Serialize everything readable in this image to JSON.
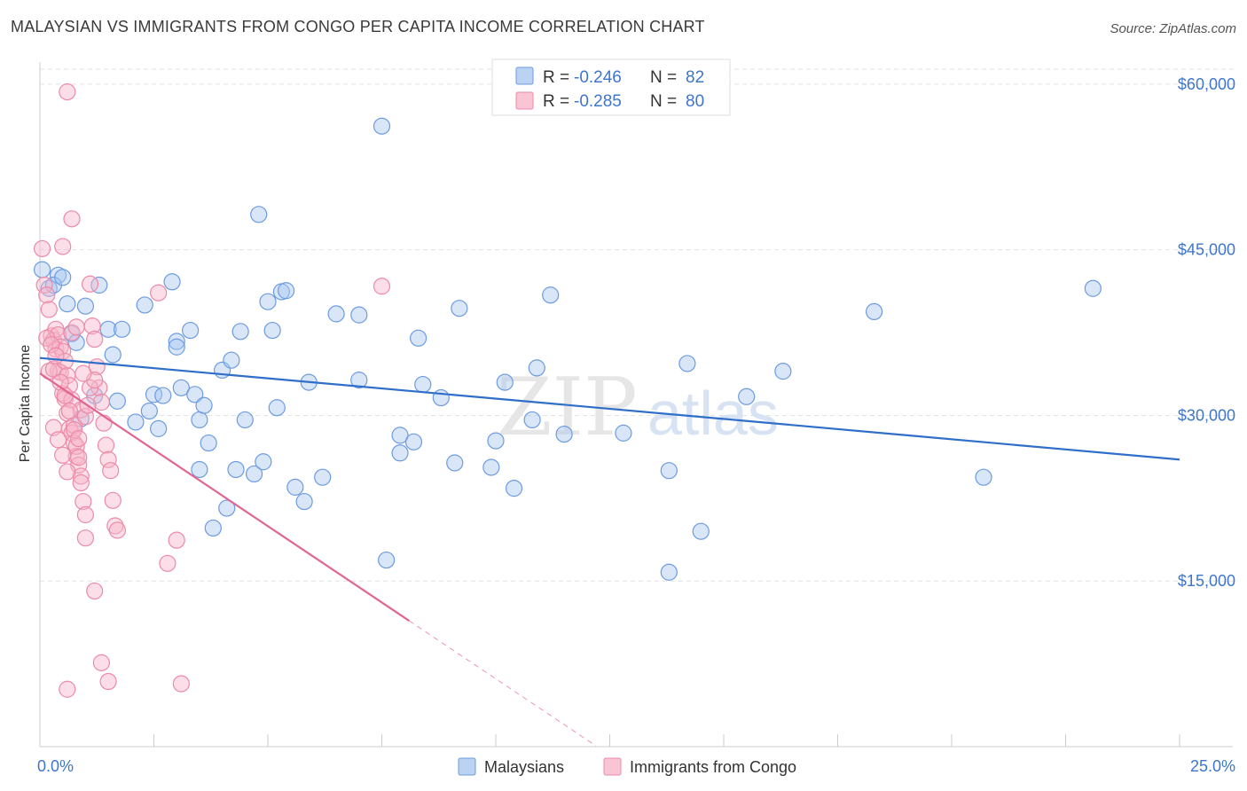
{
  "title": "MALAYSIAN VS IMMIGRANTS FROM CONGO PER CAPITA INCOME CORRELATION CHART",
  "source": "Source: ZipAtlas.com",
  "watermark": {
    "a": "ZIP",
    "b": "atlas"
  },
  "legend": {
    "r_label": "R =",
    "n_label": "N =",
    "rows": [
      {
        "r": "-0.246",
        "n": "82"
      },
      {
        "r": "-0.285",
        "n": "80"
      }
    ]
  },
  "colors": {
    "blue_fill": "#a9c8ef",
    "blue_stroke": "#6d9be0",
    "blue_line": "#2f6fc9",
    "pink_fill": "#f7b6ca",
    "pink_stroke": "#ec8aa8",
    "pink_line": "#e26591",
    "tick_text": "#3d76cc"
  },
  "chart_data": {
    "type": "scatter",
    "xlabel": "",
    "ylabel": "Per Capita Income",
    "xlim": [
      0,
      25
    ],
    "ylim": [
      0,
      62000
    ],
    "x_tick_labels": [
      "0.0%",
      "25.0%"
    ],
    "y_ticks": [
      15000,
      30000,
      45000,
      60000
    ],
    "y_tick_labels": [
      "$15,000",
      "$30,000",
      "$45,000",
      "$60,000"
    ],
    "grid": true,
    "legend_placement": "top-center",
    "series": [
      {
        "name": "Malaysians",
        "color": "#a9c8ef",
        "trend": {
          "x": [
            0,
            25
          ],
          "y": [
            35200,
            26000
          ],
          "dashed_x": []
        },
        "points": [
          [
            0.05,
            43200
          ],
          [
            0.2,
            41500
          ],
          [
            0.4,
            42700
          ],
          [
            0.3,
            41800
          ],
          [
            0.5,
            42500
          ],
          [
            0.6,
            40100
          ],
          [
            0.7,
            37400
          ],
          [
            1.0,
            39900
          ],
          [
            1.3,
            41800
          ],
          [
            0.8,
            36600
          ],
          [
            1.6,
            35500
          ],
          [
            1.5,
            37800
          ],
          [
            2.3,
            40000
          ],
          [
            1.8,
            37800
          ],
          [
            1.7,
            31300
          ],
          [
            1.2,
            31800
          ],
          [
            2.1,
            29400
          ],
          [
            2.5,
            31900
          ],
          [
            2.4,
            30400
          ],
          [
            2.6,
            28800
          ],
          [
            2.7,
            31800
          ],
          [
            3.0,
            36700
          ],
          [
            3.0,
            36200
          ],
          [
            3.1,
            32500
          ],
          [
            3.3,
            37700
          ],
          [
            3.4,
            31900
          ],
          [
            3.5,
            29600
          ],
          [
            3.6,
            30900
          ],
          [
            3.7,
            27500
          ],
          [
            3.5,
            25100
          ],
          [
            3.8,
            19800
          ],
          [
            4.0,
            34100
          ],
          [
            4.2,
            35000
          ],
          [
            4.1,
            21600
          ],
          [
            4.3,
            25100
          ],
          [
            4.4,
            37600
          ],
          [
            4.5,
            29600
          ],
          [
            4.7,
            24700
          ],
          [
            4.8,
            48200
          ],
          [
            4.9,
            25800
          ],
          [
            5.0,
            40300
          ],
          [
            5.1,
            37700
          ],
          [
            5.2,
            30700
          ],
          [
            5.3,
            41200
          ],
          [
            5.4,
            41300
          ],
          [
            5.6,
            23500
          ],
          [
            5.8,
            22200
          ],
          [
            5.9,
            33000
          ],
          [
            6.2,
            24400
          ],
          [
            6.5,
            39200
          ],
          [
            7.0,
            39100
          ],
          [
            7.0,
            33200
          ],
          [
            7.5,
            56200
          ],
          [
            7.6,
            16900
          ],
          [
            7.9,
            28200
          ],
          [
            7.9,
            26600
          ],
          [
            8.2,
            27600
          ],
          [
            8.3,
            37000
          ],
          [
            8.4,
            32800
          ],
          [
            8.8,
            31600
          ],
          [
            9.1,
            25700
          ],
          [
            9.2,
            39700
          ],
          [
            9.9,
            25300
          ],
          [
            10.0,
            27700
          ],
          [
            10.2,
            33000
          ],
          [
            10.4,
            23400
          ],
          [
            10.8,
            29600
          ],
          [
            10.9,
            34300
          ],
          [
            11.2,
            40900
          ],
          [
            11.5,
            28300
          ],
          [
            12.8,
            28400
          ],
          [
            13.8,
            15800
          ],
          [
            13.8,
            25000
          ],
          [
            14.2,
            34700
          ],
          [
            14.5,
            19500
          ],
          [
            15.5,
            31700
          ],
          [
            16.3,
            34000
          ],
          [
            18.3,
            39400
          ],
          [
            20.7,
            24400
          ],
          [
            23.1,
            41500
          ],
          [
            0.9,
            29700
          ],
          [
            2.9,
            42100
          ]
        ]
      },
      {
        "name": "Immigrants from Congo",
        "color": "#f7b6ca",
        "trend": {
          "x": [
            0,
            8.1
          ],
          "y": [
            33800,
            11400
          ],
          "dashed_x": [
            8.1,
            12.2
          ]
        },
        "points": [
          [
            0.05,
            45100
          ],
          [
            0.1,
            41800
          ],
          [
            0.15,
            40900
          ],
          [
            0.2,
            39600
          ],
          [
            0.25,
            37200
          ],
          [
            0.3,
            36800
          ],
          [
            0.35,
            36000
          ],
          [
            0.4,
            34000
          ],
          [
            0.45,
            33900
          ],
          [
            0.5,
            32000
          ],
          [
            0.55,
            31500
          ],
          [
            0.6,
            30200
          ],
          [
            0.65,
            28800
          ],
          [
            0.7,
            28400
          ],
          [
            0.75,
            27500
          ],
          [
            0.8,
            26300
          ],
          [
            0.85,
            25500
          ],
          [
            0.9,
            24500
          ],
          [
            0.95,
            22200
          ],
          [
            1.0,
            21000
          ],
          [
            1.1,
            41900
          ],
          [
            1.15,
            38100
          ],
          [
            1.2,
            36900
          ],
          [
            1.25,
            34400
          ],
          [
            1.3,
            32500
          ],
          [
            1.35,
            31200
          ],
          [
            1.4,
            29300
          ],
          [
            1.45,
            27300
          ],
          [
            1.5,
            26000
          ],
          [
            1.55,
            25000
          ],
          [
            1.6,
            22300
          ],
          [
            1.65,
            20000
          ],
          [
            1.7,
            19600
          ],
          [
            1.2,
            14100
          ],
          [
            1.35,
            7600
          ],
          [
            0.6,
            59300
          ],
          [
            0.7,
            47800
          ],
          [
            0.5,
            45300
          ],
          [
            2.6,
            41100
          ],
          [
            7.5,
            41700
          ],
          [
            2.8,
            16600
          ],
          [
            3.0,
            18700
          ],
          [
            3.1,
            5700
          ],
          [
            1.5,
            5900
          ],
          [
            0.6,
            5200
          ],
          [
            0.2,
            34000
          ],
          [
            0.3,
            34200
          ],
          [
            0.35,
            37800
          ],
          [
            0.4,
            37300
          ],
          [
            0.45,
            36200
          ],
          [
            0.5,
            35800
          ],
          [
            0.55,
            34900
          ],
          [
            0.6,
            33600
          ],
          [
            0.65,
            32700
          ],
          [
            0.7,
            31400
          ],
          [
            0.75,
            29100
          ],
          [
            0.8,
            27200
          ],
          [
            0.85,
            26200
          ],
          [
            0.9,
            23900
          ],
          [
            1.0,
            18900
          ],
          [
            0.3,
            28900
          ],
          [
            0.4,
            27800
          ],
          [
            0.5,
            26400
          ],
          [
            0.6,
            24900
          ],
          [
            0.7,
            37500
          ],
          [
            0.8,
            38000
          ],
          [
            0.9,
            30500
          ],
          [
            1.0,
            29900
          ],
          [
            1.1,
            32500
          ],
          [
            1.2,
            33200
          ],
          [
            0.15,
            37000
          ],
          [
            0.25,
            36400
          ],
          [
            0.35,
            35400
          ],
          [
            0.45,
            33000
          ],
          [
            0.55,
            31800
          ],
          [
            0.65,
            30400
          ],
          [
            0.75,
            28700
          ],
          [
            0.85,
            27900
          ],
          [
            0.95,
            33800
          ],
          [
            1.05,
            30900
          ]
        ]
      }
    ]
  }
}
